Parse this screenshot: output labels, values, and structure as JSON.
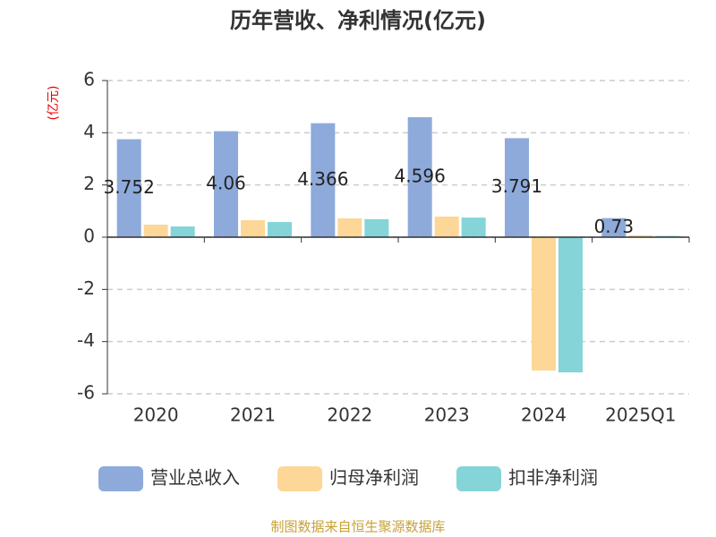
{
  "chart_data": {
    "type": "bar",
    "title": "历年营收、净利情况(亿元)",
    "y_label": "(亿元)",
    "source": "制图数据来自恒生聚源数据库",
    "categories": [
      "2020",
      "2021",
      "2022",
      "2023",
      "2024",
      "2025Q1"
    ],
    "series": [
      {
        "name": "营业总收入",
        "color": "#8eaadb",
        "show_labels": true,
        "values": [
          3.752,
          4.06,
          4.366,
          4.596,
          3.791,
          0.73
        ]
      },
      {
        "name": "归母净利润",
        "color": "#fdd797",
        "values": [
          0.48,
          0.65,
          0.72,
          0.79,
          -5.11,
          0.07
        ]
      },
      {
        "name": "扣非净利润",
        "color": "#84d4d8",
        "values": [
          0.41,
          0.58,
          0.69,
          0.75,
          -5.18,
          0.05
        ]
      }
    ],
    "ylim": [
      -6,
      6
    ],
    "yticks": [
      -6,
      -4,
      -2,
      0,
      2,
      4,
      6
    ],
    "grid": true
  }
}
